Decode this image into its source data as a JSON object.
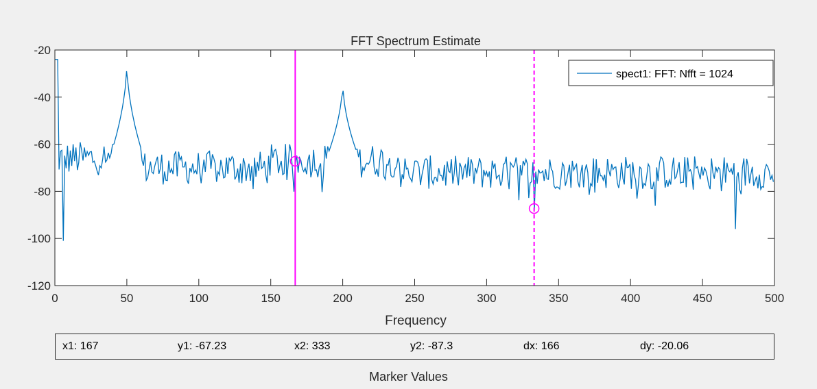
{
  "window": {
    "background": "#f0f0f0"
  },
  "chart_data": {
    "type": "line",
    "title": "FFT Spectrum Estimate",
    "xlabel": "Frequency",
    "ylabel": "",
    "xlim": [
      0,
      500
    ],
    "ylim": [
      -120,
      -20
    ],
    "xticks": [
      0,
      50,
      100,
      150,
      200,
      250,
      300,
      350,
      400,
      450,
      500
    ],
    "yticks": [
      -20,
      -40,
      -60,
      -80,
      -100,
      -120
    ],
    "grid": false,
    "legend_position": "top-right",
    "series": [
      {
        "name": "spect1: FFT: Nfft = 1024",
        "color": "#0072bd",
        "noise_band_db": [
          -78,
          -62
        ],
        "peaks": [
          {
            "x": 0,
            "y": -24
          },
          {
            "x": 50,
            "y": -25
          },
          {
            "x": 200,
            "y": -33
          },
          {
            "x": 333,
            "y": -88
          },
          {
            "x": 473,
            "y": -96
          }
        ],
        "x_resolution": 0.977
      }
    ],
    "markers": [
      {
        "label": "x1",
        "x": 167,
        "y": -67.23,
        "color": "#ff00ff",
        "style": "solid"
      },
      {
        "label": "x2",
        "x": 333,
        "y": -87.3,
        "color": "#ff00ff",
        "style": "dashed"
      }
    ]
  },
  "marker_values": {
    "title": "Marker Values",
    "fields": [
      {
        "text": "x1: 167"
      },
      {
        "text": "y1: -67.23"
      },
      {
        "text": "x2: 333"
      },
      {
        "text": "y2: -87.3"
      },
      {
        "text": "dx: 166"
      },
      {
        "text": "dy: -20.06"
      }
    ]
  }
}
